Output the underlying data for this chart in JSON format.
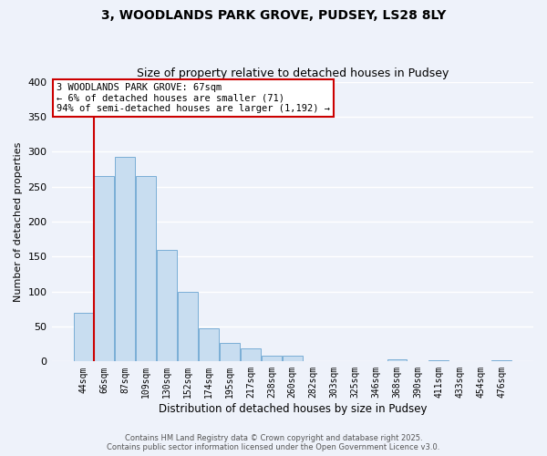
{
  "title": "3, WOODLANDS PARK GROVE, PUDSEY, LS28 8LY",
  "subtitle": "Size of property relative to detached houses in Pudsey",
  "xlabel": "Distribution of detached houses by size in Pudsey",
  "ylabel": "Number of detached properties",
  "bar_color": "#c8ddf0",
  "bar_edge_color": "#7aaed6",
  "background_color": "#eef2fa",
  "grid_color": "#ffffff",
  "bin_labels": [
    "44sqm",
    "66sqm",
    "87sqm",
    "109sqm",
    "130sqm",
    "152sqm",
    "174sqm",
    "195sqm",
    "217sqm",
    "238sqm",
    "260sqm",
    "282sqm",
    "303sqm",
    "325sqm",
    "346sqm",
    "368sqm",
    "390sqm",
    "411sqm",
    "433sqm",
    "454sqm",
    "476sqm"
  ],
  "bar_values": [
    70,
    265,
    293,
    265,
    160,
    99,
    47,
    26,
    19,
    8,
    8,
    0,
    0,
    0,
    0,
    3,
    0,
    2,
    1,
    1,
    2
  ],
  "ylim": [
    0,
    400
  ],
  "yticks": [
    0,
    50,
    100,
    150,
    200,
    250,
    300,
    350,
    400
  ],
  "property_sqm": 67,
  "annotation_title": "3 WOODLANDS PARK GROVE: 67sqm",
  "annotation_line1": "← 6% of detached houses are smaller (71)",
  "annotation_line2": "94% of semi-detached houses are larger (1,192) →",
  "annotation_box_color": "#ffffff",
  "annotation_box_edge": "#cc0000",
  "vline_color": "#cc0000",
  "footer_line1": "Contains HM Land Registry data © Crown copyright and database right 2025.",
  "footer_line2": "Contains public sector information licensed under the Open Government Licence v3.0."
}
